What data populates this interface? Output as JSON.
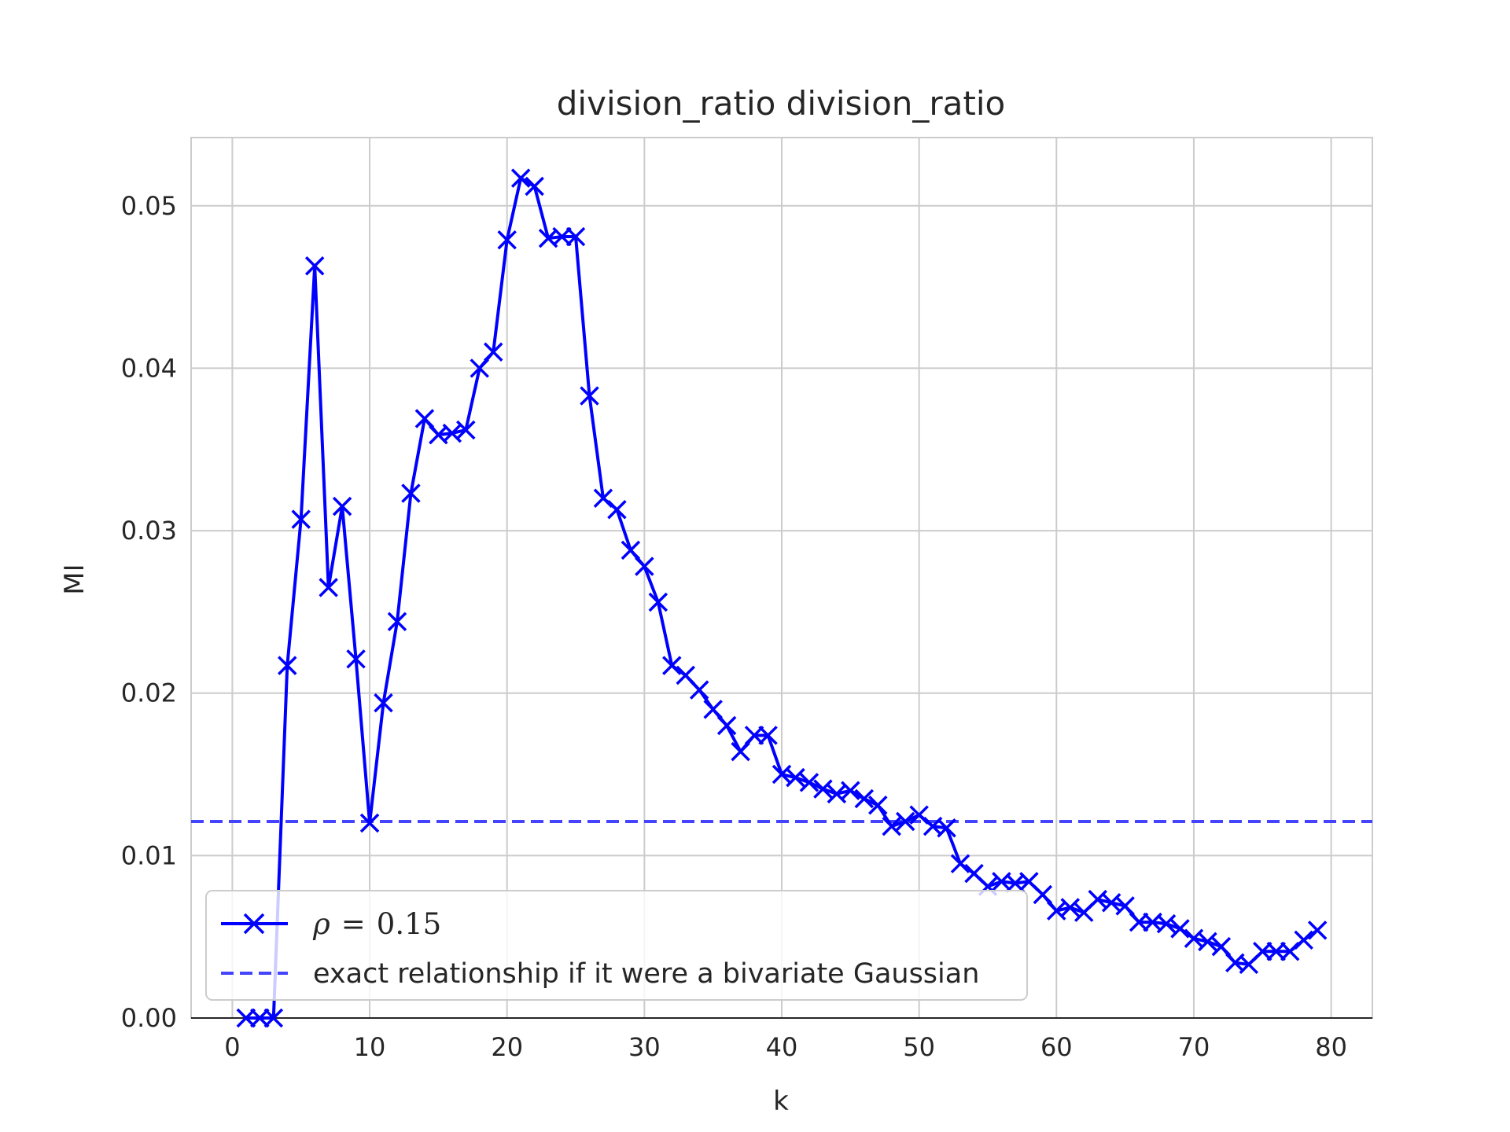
{
  "chart_data": {
    "type": "line",
    "title": "division_ratio division_ratio",
    "xlabel": "k",
    "ylabel": "MI",
    "xlim": [
      -3,
      83
    ],
    "ylim": [
      0,
      0.0542
    ],
    "xticks": [
      0,
      10,
      20,
      30,
      40,
      50,
      60,
      70,
      80
    ],
    "xtick_labels": [
      "0",
      "10",
      "20",
      "30",
      "40",
      "50",
      "60",
      "70",
      "80"
    ],
    "yticks": [
      0.0,
      0.01,
      0.02,
      0.03,
      0.04,
      0.05
    ],
    "ytick_labels": [
      "0.00",
      "0.01",
      "0.02",
      "0.03",
      "0.04",
      "0.05"
    ],
    "grid": true,
    "legend_position": "lower-left",
    "series": [
      {
        "name": "ρ = 0.15",
        "name_prefix": "ρ",
        "name_op": "=",
        "name_value": "0.15",
        "color": "#0000ff",
        "style": "solid",
        "marker": "x",
        "x": [
          1,
          2,
          3,
          4,
          5,
          6,
          7,
          8,
          9,
          10,
          11,
          12,
          13,
          14,
          15,
          16,
          17,
          18,
          19,
          20,
          21,
          22,
          23,
          24,
          25,
          26,
          27,
          28,
          29,
          30,
          31,
          32,
          33,
          34,
          35,
          36,
          37,
          38,
          39,
          40,
          41,
          42,
          43,
          44,
          45,
          46,
          47,
          48,
          49,
          50,
          51,
          52,
          53,
          54,
          55,
          56,
          57,
          58,
          59,
          60,
          61,
          62,
          63,
          64,
          65,
          66,
          67,
          68,
          69,
          70,
          71,
          72,
          73,
          74,
          75,
          76,
          77,
          78,
          79
        ],
        "y": [
          0.0,
          0.0,
          0.0,
          0.0217,
          0.0307,
          0.0463,
          0.0265,
          0.0315,
          0.0221,
          0.012,
          0.0194,
          0.0244,
          0.0323,
          0.0369,
          0.0359,
          0.036,
          0.0362,
          0.04,
          0.041,
          0.0479,
          0.0517,
          0.0512,
          0.048,
          0.0481,
          0.0481,
          0.0383,
          0.032,
          0.0313,
          0.0288,
          0.0278,
          0.0256,
          0.0217,
          0.0211,
          0.0202,
          0.019,
          0.018,
          0.0164,
          0.0174,
          0.0174,
          0.015,
          0.0148,
          0.0145,
          0.0141,
          0.0138,
          0.014,
          0.0135,
          0.0131,
          0.0118,
          0.0121,
          0.0125,
          0.0118,
          0.0117,
          0.0095,
          0.0089,
          0.0081,
          0.0084,
          0.0083,
          0.0084,
          0.0076,
          0.0066,
          0.0068,
          0.0065,
          0.0073,
          0.0071,
          0.0069,
          0.0059,
          0.0059,
          0.0058,
          0.0055,
          0.0049,
          0.0047,
          0.0044,
          0.0034,
          0.0033,
          0.0041,
          0.0041,
          0.0041,
          0.0048,
          0.0054
        ]
      },
      {
        "name": "exact relationship if it were a bivariate Gaussian",
        "color": "#4444ff",
        "style": "dashed",
        "hline": 0.0121
      }
    ]
  }
}
